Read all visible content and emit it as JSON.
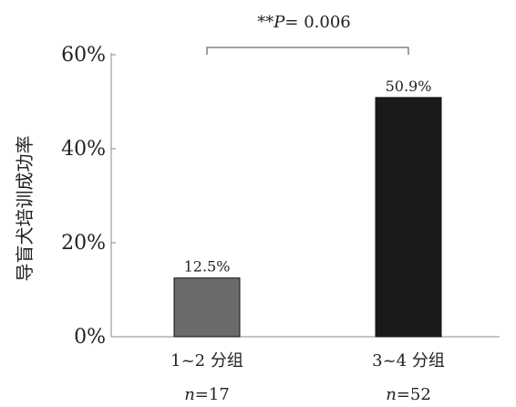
{
  "chart_data": {
    "type": "bar",
    "title": "",
    "xlabel": "",
    "ylabel": "导盲犬培训成功率",
    "categories": [
      "1~2 分组",
      "3~4 分组"
    ],
    "values": [
      12.5,
      50.9
    ],
    "value_labels": [
      "12.5%",
      "50.9%"
    ],
    "sample_sizes": [
      {
        "prefix": "n",
        "value": "=17"
      },
      {
        "prefix": "n",
        "value": "=52"
      }
    ],
    "bar_colors": [
      "#6b6b6b",
      "#1a1a1a"
    ],
    "ylim": [
      0,
      60
    ],
    "yticks": [
      0,
      20,
      40,
      60
    ],
    "ytick_labels": [
      "0%",
      "20%",
      "40%",
      "60%"
    ],
    "grid": false,
    "significance": {
      "stars": "**",
      "p_symbol": "P",
      "p_value": "= 0.006",
      "between": [
        0,
        1
      ]
    }
  }
}
